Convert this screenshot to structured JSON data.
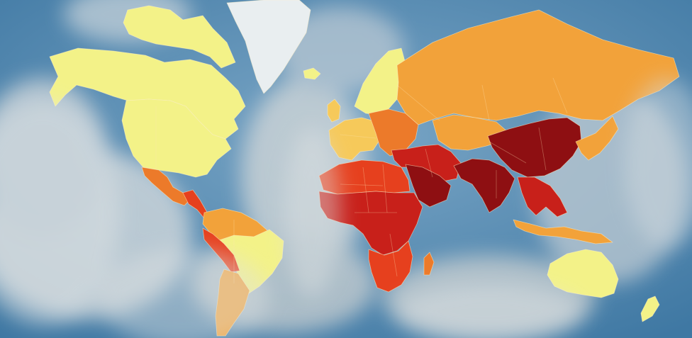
{
  "map": {
    "kind": "world choropleth",
    "legend_shown": false,
    "title_shown": false,
    "scale_colors": {
      "lowest": "#f3f288",
      "low": "#f6c95a",
      "medium": "#f2a23a",
      "elevated": "#ec7a2a",
      "high": "#e6401e",
      "very_high": "#c8201a",
      "highest": "#8e0f12"
    },
    "ocean_color": "#4f86ad",
    "ice_color": "#e9eef0",
    "haze_color": "#d8dcdc",
    "regions": [
      {
        "name": "canada-alaska",
        "level": "lowest"
      },
      {
        "name": "arctic-islands",
        "level": "lowest"
      },
      {
        "name": "greenland",
        "level": "ice"
      },
      {
        "name": "united-states",
        "level": "lowest"
      },
      {
        "name": "mexico",
        "level": "elevated"
      },
      {
        "name": "central-america",
        "level": "high"
      },
      {
        "name": "south-america-north",
        "level": "medium"
      },
      {
        "name": "brazil",
        "level": "lowest"
      },
      {
        "name": "peru-bolivia",
        "level": "high"
      },
      {
        "name": "southern-cone",
        "level": "medium"
      },
      {
        "name": "scandinavia",
        "level": "lowest"
      },
      {
        "name": "iceland",
        "level": "lowest"
      },
      {
        "name": "uk-ireland",
        "level": "low"
      },
      {
        "name": "western-europe",
        "level": "low"
      },
      {
        "name": "eastern-europe",
        "level": "elevated"
      },
      {
        "name": "russia",
        "level": "medium"
      },
      {
        "name": "central-asia",
        "level": "medium"
      },
      {
        "name": "middle-east",
        "level": "very_high"
      },
      {
        "name": "arabian-peninsula",
        "level": "highest"
      },
      {
        "name": "north-africa",
        "level": "high"
      },
      {
        "name": "sahel-central-africa",
        "level": "very_high"
      },
      {
        "name": "southern-africa",
        "level": "high"
      },
      {
        "name": "madagascar",
        "level": "elevated"
      },
      {
        "name": "south-asia",
        "level": "highest"
      },
      {
        "name": "china",
        "level": "highest"
      },
      {
        "name": "southeast-asia",
        "level": "very_high"
      },
      {
        "name": "japan-korea",
        "level": "medium"
      },
      {
        "name": "indonesia",
        "level": "medium"
      },
      {
        "name": "australia",
        "level": "lowest"
      },
      {
        "name": "new-zealand",
        "level": "lowest"
      }
    ]
  }
}
